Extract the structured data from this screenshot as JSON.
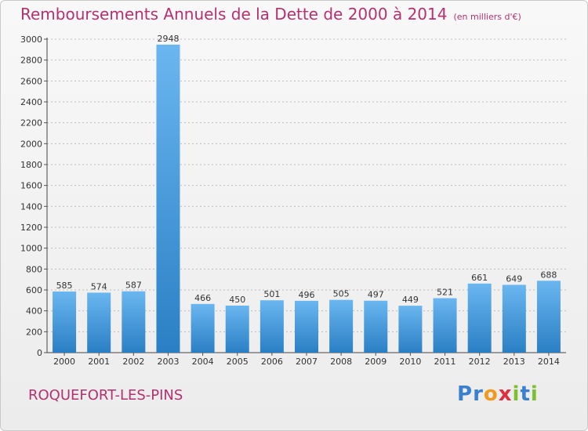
{
  "header": {
    "title": "Remboursements Annuels de la Dette de 2000 à 2014",
    "unit": "(en milliers d'€)"
  },
  "footer": {
    "commune": "ROQUEFORT-LES-PINS",
    "logo": {
      "text": "Proxiti",
      "letters": [
        {
          "ch": "P",
          "color": "#3b7fd0"
        },
        {
          "ch": "r",
          "color": "#3b7fd0"
        },
        {
          "ch": "o",
          "color": "#f29a1e"
        },
        {
          "ch": "x",
          "color": "#e0303f"
        },
        {
          "ch": "i",
          "color": "#7dbf2e"
        },
        {
          "ch": "t",
          "color": "#3b7fd0"
        },
        {
          "ch": "i",
          "color": "#7dbf2e"
        }
      ]
    }
  },
  "colors": {
    "title": "#b5306f",
    "bar_top": "#6ab6f0",
    "bar_bottom": "#2a7fc4",
    "grid": "#bdbdbd",
    "axis_text": "#333333"
  },
  "chart_data": {
    "type": "bar",
    "categories": [
      "2000",
      "2001",
      "2002",
      "2003",
      "2004",
      "2005",
      "2006",
      "2007",
      "2008",
      "2009",
      "2010",
      "2011",
      "2012",
      "2013",
      "2014"
    ],
    "values": [
      585,
      574,
      587,
      2948,
      466,
      450,
      501,
      496,
      505,
      497,
      449,
      521,
      661,
      649,
      688
    ],
    "ylim": [
      0,
      3000
    ],
    "yticks": [
      0,
      200,
      400,
      600,
      800,
      1000,
      1200,
      1400,
      1600,
      1800,
      2000,
      2200,
      2400,
      2600,
      2800,
      3000
    ],
    "grid": true,
    "data_labels": true
  }
}
